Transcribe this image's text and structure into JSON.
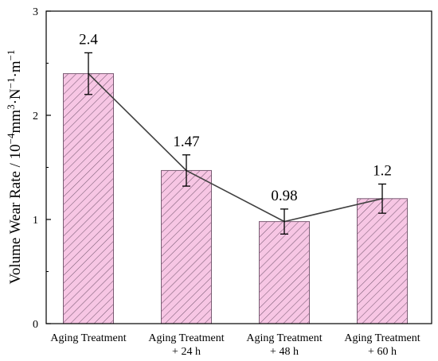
{
  "chart_data": {
    "type": "bar",
    "categories": [
      [
        "Aging Treatment"
      ],
      [
        "Aging Treatment",
        "+ 24 h"
      ],
      [
        "Aging Treatment",
        "+ 48 h"
      ],
      [
        "Aging Treatment",
        "+ 60 h"
      ]
    ],
    "values": [
      2.4,
      1.47,
      0.98,
      1.2
    ],
    "errors": [
      0.2,
      0.15,
      0.12,
      0.14
    ],
    "data_labels": [
      "2.4",
      "1.47",
      "0.98",
      "1.2"
    ],
    "ylabel": {
      "prefix": "Volume Wear Rate / 10",
      "exp1": "−4",
      "mid": "mm",
      "exp2": "3",
      "mid2": "·N",
      "exp3": "−1",
      "mid3": "·m",
      "exp4": "−1"
    },
    "ylim": [
      0,
      3
    ],
    "yticks": [
      "0",
      "1",
      "2",
      "3"
    ],
    "connecting_line": true,
    "bar_fill": "#f7c6e4",
    "bar_hatch_color": "#7a5c74",
    "line_color": "#404040"
  }
}
